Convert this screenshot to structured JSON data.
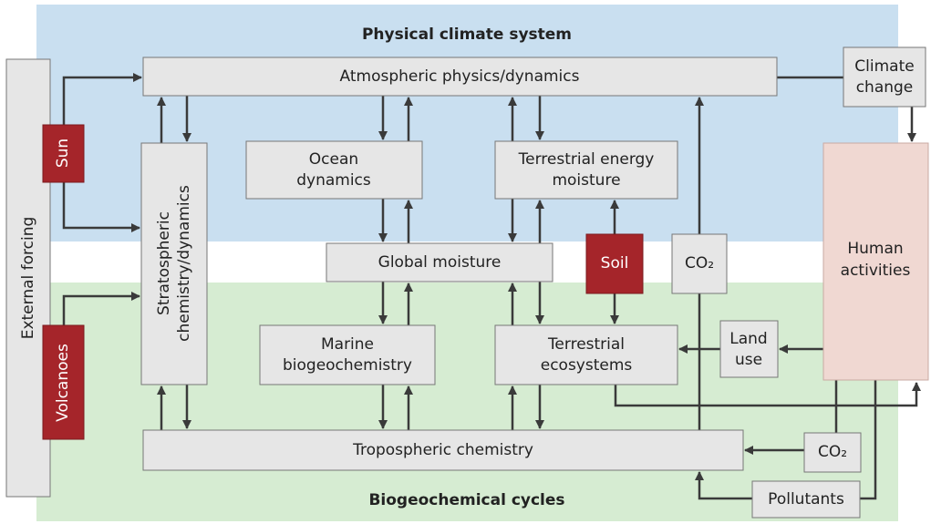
{
  "header": {
    "top_label": "Physical climate system",
    "bottom_label": "Biogeochemical cycles"
  },
  "nodes": [
    {
      "lines": [
        "External forcing"
      ]
    },
    {
      "lines": [
        "Sun"
      ]
    },
    {
      "lines": [
        "Volcanoes"
      ]
    },
    {
      "lines": [
        "Atmospheric physics/dynamics"
      ]
    },
    {
      "lines": [
        "Climate",
        "change"
      ]
    },
    {
      "lines": [
        "Stratospheric",
        "chemistry/dynamics"
      ]
    },
    {
      "lines": [
        "Ocean",
        "dynamics"
      ]
    },
    {
      "lines": [
        "Terrestrial energy",
        "moisture"
      ]
    },
    {
      "lines": [
        "Global moisture"
      ]
    },
    {
      "lines": [
        "Soil"
      ]
    },
    {
      "lines": [
        "CO₂"
      ]
    },
    {
      "lines": [
        "Human",
        "activities"
      ]
    },
    {
      "lines": [
        "Marine",
        "biogeochemistry"
      ]
    },
    {
      "lines": [
        "Terrestrial",
        "ecosystems"
      ]
    },
    {
      "lines": [
        "Land",
        "use"
      ]
    },
    {
      "lines": [
        "Tropospheric chemistry"
      ]
    },
    {
      "lines": [
        "CO₂"
      ]
    },
    {
      "lines": [
        "Pollutants"
      ]
    }
  ]
}
